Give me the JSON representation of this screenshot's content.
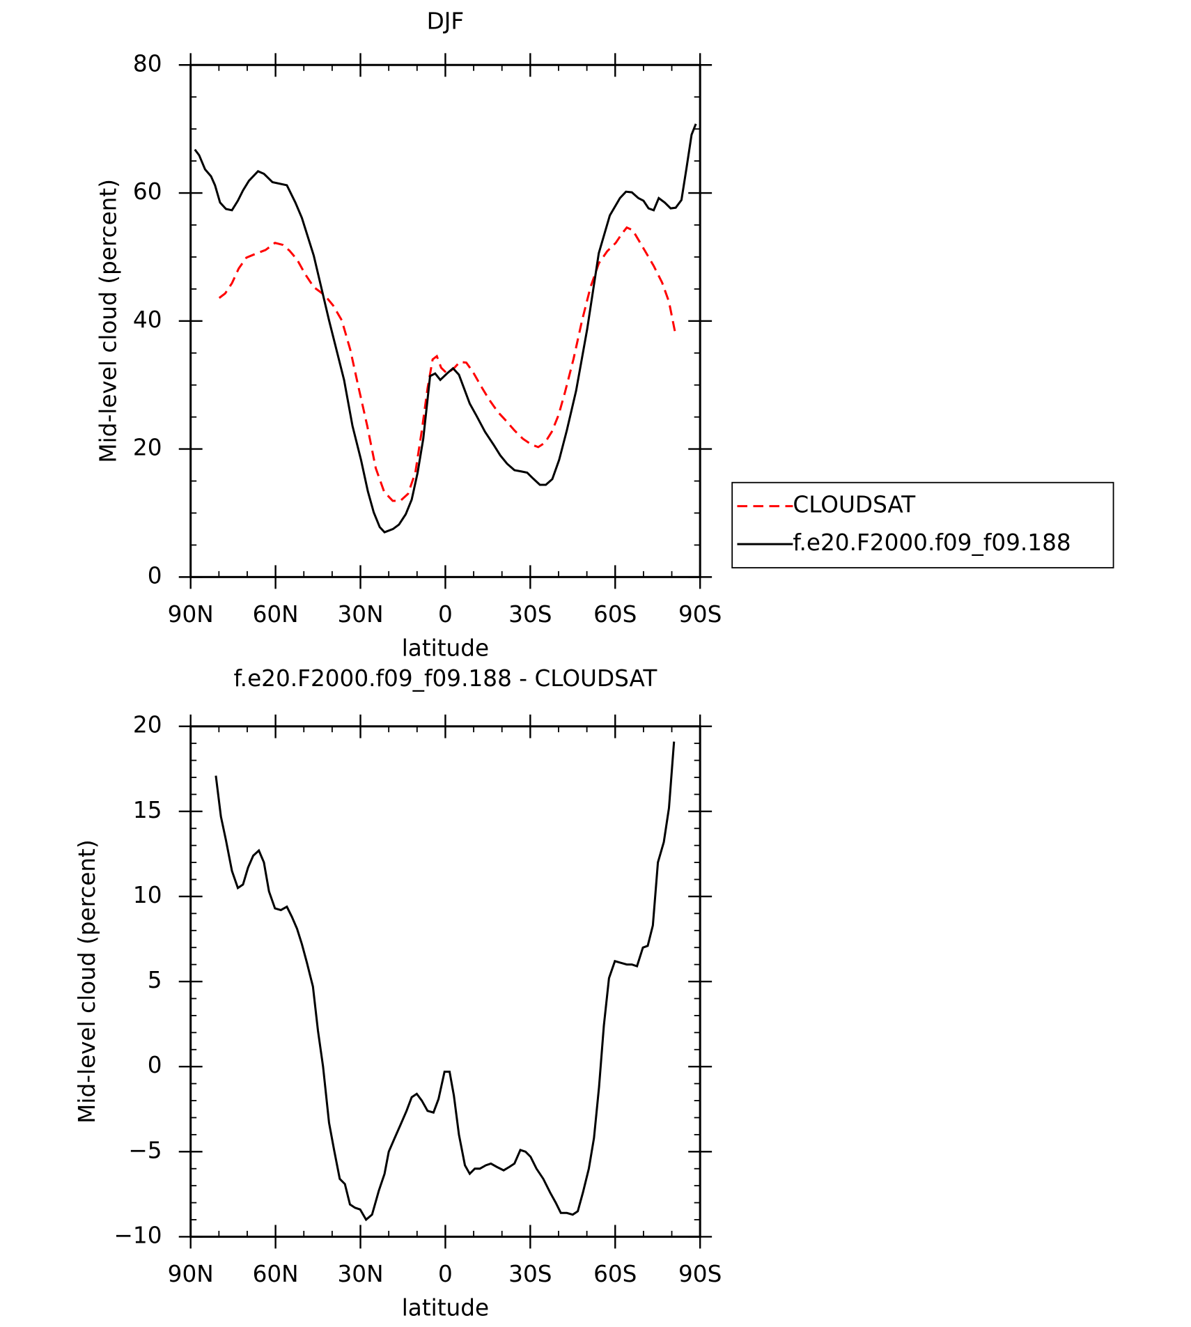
{
  "chart_data": [
    {
      "type": "line",
      "title": "DJF",
      "xlabel": "latitude",
      "ylabel": "Mid-level cloud (percent)",
      "xlim": [
        90,
        -90
      ],
      "xticks": [
        {
          "value": 90,
          "label": "90N"
        },
        {
          "value": 60,
          "label": "60N"
        },
        {
          "value": 30,
          "label": "30N"
        },
        0,
        {
          "value": -30,
          "label": "30S"
        },
        {
          "value": -60,
          "label": "60S"
        },
        {
          "value": -90,
          "label": "90S"
        }
      ],
      "xminorticks": [
        80,
        70,
        50,
        40,
        20,
        10,
        -10,
        -20,
        -40,
        -50,
        -70,
        -80
      ],
      "ylim": [
        0,
        80
      ],
      "yticks": [
        0,
        20,
        40,
        60,
        80
      ],
      "yminorticks": [
        5,
        10,
        15,
        25,
        30,
        35,
        45,
        50,
        55,
        65,
        70,
        75
      ],
      "legend": "right",
      "series": [
        {
          "name": "CLOUDSAT",
          "color": "#ff0000",
          "dash": true,
          "x": [
            79.9,
            77.8,
            75.4,
            73.0,
            70.3,
            66.5,
            63.5,
            60.2,
            57.5,
            55.1,
            52.4,
            49.5,
            46.5,
            42.6,
            39.6,
            36.6,
            33.6,
            30.6,
            27.6,
            24.6,
            21.6,
            18.6,
            15.9,
            13.2,
            10.6,
            8.3,
            6.3,
            4.5,
            3.0,
            1.5,
            -0.6,
            -3.0,
            -5.1,
            -7.4,
            -9.8,
            -12.5,
            -15.5,
            -18.5,
            -21.5,
            -24.4,
            -27.4,
            -30.4,
            -32.8,
            -35.2,
            -37.6,
            -40.0,
            -42.3,
            -45.3,
            -48.3,
            -51.3,
            -54.2,
            -57.2,
            -60.2,
            -62.3,
            -64.1,
            -66.2,
            -68.2,
            -70.6,
            -73.6,
            -76.6,
            -79.0,
            -81.1
          ],
          "values": [
            43.6,
            44.3,
            45.9,
            48.2,
            49.9,
            50.6,
            51.1,
            52.2,
            51.9,
            51.0,
            49.6,
            47.3,
            45.3,
            44.0,
            42.4,
            40.1,
            35.5,
            29.5,
            23.6,
            17.0,
            13.3,
            11.9,
            11.9,
            13.0,
            16.3,
            22.9,
            29.5,
            34.0,
            34.5,
            32.7,
            31.8,
            32.6,
            33.6,
            33.5,
            32.0,
            29.9,
            27.7,
            25.8,
            24.4,
            22.9,
            21.6,
            20.7,
            20.3,
            21.0,
            22.7,
            25.3,
            28.9,
            34.1,
            40.1,
            45.3,
            49.0,
            50.9,
            52.2,
            53.6,
            54.6,
            54.2,
            52.7,
            50.9,
            48.6,
            46.0,
            43.0,
            38.4
          ]
        },
        {
          "name": "f.e20.F2000.f09_f09.188",
          "color": "#000000",
          "dash": false,
          "x": [
            88.5,
            87.0,
            84.9,
            82.8,
            81.4,
            79.6,
            77.5,
            75.4,
            73.3,
            71.5,
            69.4,
            66.2,
            64.1,
            61.1,
            56.0,
            53.0,
            50.7,
            46.5,
            41.1,
            35.8,
            32.8,
            29.8,
            27.4,
            25.3,
            23.2,
            21.5,
            18.5,
            16.4,
            14.0,
            11.9,
            9.8,
            7.8,
            5.4,
            3.6,
            1.8,
            -0.6,
            -2.7,
            -4.8,
            -6.6,
            -8.6,
            -11.0,
            -14.0,
            -17.0,
            -19.4,
            -21.8,
            -24.4,
            -26.8,
            -28.9,
            -31.0,
            -33.4,
            -35.5,
            -37.8,
            -40.2,
            -42.9,
            -46.2,
            -50.1,
            -54.2,
            -58.1,
            -61.7,
            -63.8,
            -65.9,
            -68.2,
            -70.0,
            -71.8,
            -73.6,
            -75.4,
            -77.5,
            -79.6,
            -81.4,
            -83.4,
            -85.2,
            -87.0,
            -88.5
          ],
          "values": [
            66.8,
            65.9,
            63.7,
            62.6,
            61.2,
            58.5,
            57.5,
            57.3,
            58.8,
            60.4,
            61.9,
            63.4,
            63.0,
            61.7,
            61.2,
            58.5,
            56.1,
            50.2,
            40.1,
            30.8,
            23.6,
            18.3,
            13.4,
            10.1,
            7.8,
            7.0,
            7.5,
            8.2,
            9.8,
            12.1,
            16.3,
            21.6,
            31.4,
            31.8,
            30.8,
            31.8,
            32.6,
            31.6,
            29.5,
            27.1,
            25.2,
            22.7,
            20.7,
            19.0,
            17.7,
            16.7,
            16.5,
            16.3,
            15.4,
            14.4,
            14.4,
            15.3,
            18.3,
            22.9,
            29.1,
            38.7,
            50.6,
            56.5,
            59.2,
            60.2,
            60.1,
            59.2,
            58.8,
            57.6,
            57.3,
            59.2,
            58.5,
            57.6,
            57.7,
            58.9,
            63.9,
            69.1,
            70.8
          ]
        }
      ]
    },
    {
      "type": "line",
      "title": "f.e20.F2000.f09_f09.188 - CLOUDSAT",
      "xlabel": "latitude",
      "ylabel": "Mid-level cloud (percent)",
      "xlim": [
        90,
        -90
      ],
      "xticks": [
        {
          "value": 90,
          "label": "90N"
        },
        {
          "value": 60,
          "label": "60N"
        },
        {
          "value": 30,
          "label": "30N"
        },
        0,
        {
          "value": -30,
          "label": "30S"
        },
        {
          "value": -60,
          "label": "60S"
        },
        {
          "value": -90,
          "label": "90S"
        }
      ],
      "xminorticks": [
        80,
        70,
        50,
        40,
        20,
        10,
        -10,
        -20,
        -40,
        -50,
        -70,
        -80
      ],
      "ylim": [
        -10,
        20
      ],
      "yticks": [
        {
          "value": -10,
          "label": "−10"
        },
        {
          "value": -5,
          "label": "−5"
        },
        0,
        5,
        10,
        15,
        20
      ],
      "yminorticks": [
        -9,
        -8,
        -7,
        -6,
        -4,
        -3,
        -2,
        -1,
        1,
        2,
        3,
        4,
        6,
        7,
        8,
        9,
        11,
        12,
        13,
        14,
        16,
        17,
        18,
        19
      ],
      "color": "#000000",
      "x": [
        81.1,
        79.3,
        77.5,
        75.4,
        73.3,
        71.5,
        69.7,
        67.9,
        65.9,
        64.1,
        62.3,
        60.2,
        58.1,
        56.0,
        54.2,
        52.4,
        50.7,
        48.9,
        46.8,
        45.0,
        43.2,
        41.1,
        39.3,
        37.3,
        35.5,
        33.7,
        31.9,
        30.1,
        28.0,
        25.9,
        23.5,
        21.5,
        20.0,
        17.9,
        15.8,
        13.7,
        11.9,
        10.1,
        8.3,
        6.3,
        4.2,
        2.4,
        0.3,
        -1.5,
        -3.0,
        -4.8,
        -6.9,
        -8.6,
        -10.4,
        -12.2,
        -14.3,
        -16.1,
        -18.2,
        -20.6,
        -22.6,
        -24.4,
        -26.5,
        -28.3,
        -30.1,
        -32.2,
        -34.6,
        -37.0,
        -39.0,
        -40.8,
        -42.9,
        -45.0,
        -46.8,
        -48.6,
        -50.7,
        -52.5,
        -54.3,
        -56.0,
        -57.8,
        -59.9,
        -62.0,
        -64.1,
        -65.9,
        -67.7,
        -69.8,
        -71.5,
        -73.3,
        -75.1,
        -77.2,
        -79.0,
        -80.8
      ],
      "values": [
        17.1,
        14.7,
        13.3,
        11.5,
        10.5,
        10.7,
        11.7,
        12.4,
        12.7,
        12.0,
        10.3,
        9.3,
        9.2,
        9.4,
        8.8,
        8.1,
        7.2,
        6.1,
        4.7,
        2.1,
        0.0,
        -3.3,
        -4.9,
        -6.6,
        -6.9,
        -8.1,
        -8.3,
        -8.4,
        -9.0,
        -8.7,
        -7.3,
        -6.3,
        -5.0,
        -4.2,
        -3.4,
        -2.6,
        -1.8,
        -1.6,
        -2.0,
        -2.6,
        -2.7,
        -1.9,
        -0.3,
        -0.3,
        -1.7,
        -4.0,
        -5.8,
        -6.3,
        -6.0,
        -6.0,
        -5.8,
        -5.7,
        -5.9,
        -6.1,
        -5.9,
        -5.7,
        -4.9,
        -5.0,
        -5.3,
        -6.0,
        -6.6,
        -7.4,
        -8.0,
        -8.6,
        -8.6,
        -8.7,
        -8.5,
        -7.4,
        -6.0,
        -4.2,
        -1.2,
        2.4,
        5.2,
        6.2,
        6.1,
        6.0,
        6.0,
        5.9,
        7.0,
        7.1,
        8.3,
        12.0,
        13.2,
        15.2,
        19.1
      ]
    }
  ]
}
